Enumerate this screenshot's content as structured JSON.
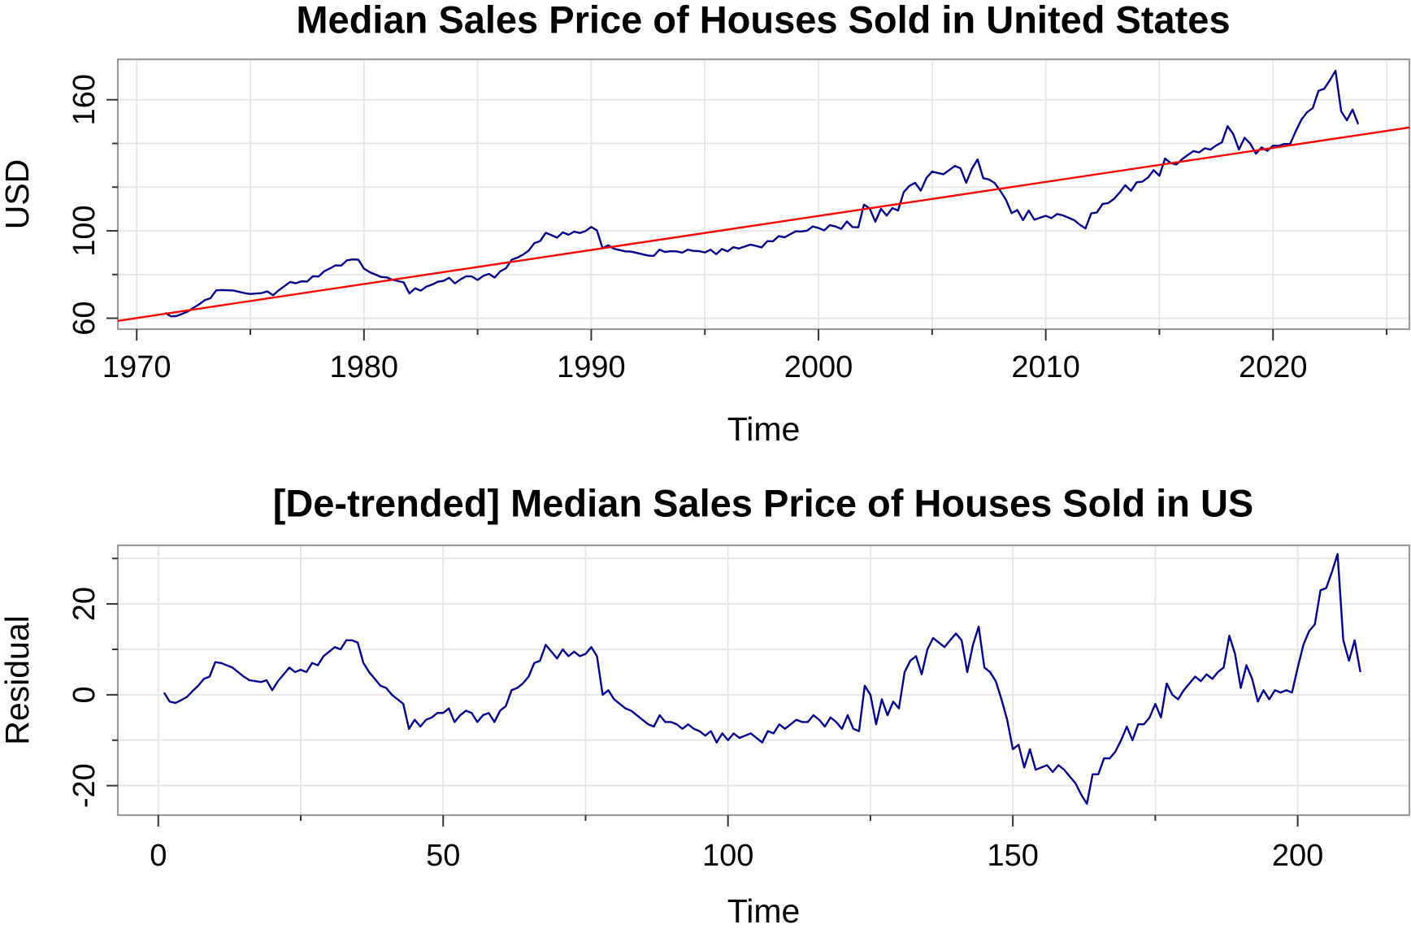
{
  "chart_data": [
    {
      "type": "line",
      "title": "Median Sales Price of Houses Sold in United States",
      "xlabel": "Time",
      "ylabel": "USD",
      "xlim": [
        1969.17,
        2026.0
      ],
      "ylim": [
        55,
        178.5
      ],
      "xticks": [
        1970,
        1980,
        1990,
        2000,
        2010,
        2020
      ],
      "xminorticks": [
        1975,
        1985,
        1995,
        2005,
        2015,
        2025
      ],
      "yticks": [
        60,
        100,
        160
      ],
      "yminorticks": [
        80,
        120,
        140
      ],
      "grid": true,
      "series": [
        {
          "color": "#00008b",
          "x": [
            1971.25,
            1971.5,
            1971.75,
            1972,
            1972.25,
            1972.5,
            1972.75,
            1973,
            1973.25,
            1973.5,
            1973.75,
            1974,
            1974.25,
            1974.5,
            1974.75,
            1975,
            1975.25,
            1975.5,
            1975.75,
            1976,
            1976.25,
            1976.5,
            1976.75,
            1977,
            1977.25,
            1977.5,
            1977.75,
            1978,
            1978.25,
            1978.5,
            1978.75,
            1979,
            1979.25,
            1979.5,
            1979.75,
            1980,
            1980.25,
            1980.5,
            1980.75,
            1981,
            1981.25,
            1981.5,
            1981.75,
            1982,
            1982.25,
            1982.5,
            1982.75,
            1983,
            1983.25,
            1983.5,
            1983.75,
            1984,
            1984.25,
            1984.5,
            1984.75,
            1985,
            1985.25,
            1985.5,
            1985.75,
            1986,
            1986.25,
            1986.5,
            1986.75,
            1987,
            1987.25,
            1987.5,
            1987.75,
            1988,
            1988.25,
            1988.5,
            1988.75,
            1989,
            1989.25,
            1989.5,
            1989.75,
            1990,
            1990.25,
            1990.5,
            1990.75,
            1991,
            1991.25,
            1991.5,
            1991.75,
            1992,
            1992.25,
            1992.5,
            1992.75,
            1993,
            1993.25,
            1993.5,
            1993.75,
            1994,
            1994.25,
            1994.5,
            1994.75,
            1995,
            1995.25,
            1995.5,
            1995.75,
            1996,
            1996.25,
            1996.5,
            1996.75,
            1997,
            1997.25,
            1997.5,
            1997.75,
            1998,
            1998.25,
            1998.5,
            1998.75,
            1999,
            1999.25,
            1999.5,
            1999.75,
            2000,
            2000.25,
            2000.5,
            2000.75,
            2001,
            2001.25,
            2001.5,
            2001.75,
            2002,
            2002.25,
            2002.5,
            2002.75,
            2003,
            2003.25,
            2003.5,
            2003.75,
            2004,
            2004.25,
            2004.5,
            2004.75,
            2005,
            2005.25,
            2005.5,
            2005.75,
            2006,
            2006.25,
            2006.5,
            2006.75,
            2007,
            2007.25,
            2007.5,
            2007.75,
            2008,
            2008.25,
            2008.5,
            2008.75,
            2009,
            2009.25,
            2009.5,
            2009.75,
            2010,
            2010.25,
            2010.5,
            2010.75,
            2011,
            2011.25,
            2011.5,
            2011.75,
            2012,
            2012.25,
            2012.5,
            2012.75,
            2013,
            2013.25,
            2013.5,
            2013.75,
            2014,
            2014.25,
            2014.5,
            2014.75,
            2015,
            2015.25,
            2015.5,
            2015.75,
            2016,
            2016.25,
            2016.5,
            2016.75,
            2017,
            2017.25,
            2017.5,
            2017.75,
            2018,
            2018.25,
            2018.5,
            2018.75,
            2019,
            2019.25,
            2019.5,
            2019.75,
            2020,
            2020.25,
            2020.5,
            2020.75,
            2021,
            2021.25,
            2021.5,
            2021.75,
            2022,
            2022.25,
            2022.5,
            2022.75,
            2023,
            2023.25,
            2023.5,
            2023.75
          ],
          "values": [
            62.5,
            60.9,
            61.0,
            62.0,
            63.1,
            64.8,
            66.4,
            68.3,
            69.2,
            72.8,
            72.9,
            72.8,
            72.7,
            72.1,
            71.5,
            71.1,
            71.3,
            71.5,
            72.3,
            70.5,
            72.8,
            74.7,
            76.6,
            76.0,
            76.9,
            76.8,
            79.2,
            79.1,
            81.5,
            82.8,
            84.2,
            84.1,
            86.5,
            86.9,
            86.8,
            82.7,
            81.1,
            80.0,
            78.9,
            78.7,
            77.6,
            77.0,
            76.4,
            71.3,
            73.7,
            72.6,
            74.5,
            75.4,
            76.7,
            77.1,
            78.5,
            75.9,
            77.8,
            79.2,
            79.1,
            77.5,
            79.4,
            80.3,
            78.6,
            81.5,
            82.9,
            86.8,
            87.7,
            89.1,
            91.0,
            94.4,
            95.3,
            99.1,
            98.0,
            96.9,
            99.3,
            98.2,
            99.6,
            99.0,
            99.9,
            101.8,
            100.2,
            92.0,
            93.4,
            91.8,
            91.2,
            90.6,
            90.5,
            89.9,
            89.3,
            88.7,
            88.5,
            91.4,
            90.3,
            90.7,
            90.6,
            90.0,
            91.4,
            90.8,
            90.7,
            90.1,
            91.4,
            89.3,
            91.7,
            90.6,
            92.5,
            91.9,
            92.8,
            93.7,
            93.1,
            92.4,
            95.3,
            95.2,
            97.6,
            97.0,
            98.4,
            99.8,
            99.7,
            100.1,
            102.0,
            101.3,
            100.2,
            102.6,
            102.0,
            100.9,
            104.3,
            101.7,
            101.6,
            112.0,
            110.3,
            104.2,
            110.1,
            107.0,
            110.4,
            109.3,
            117.7,
            120.6,
            122.0,
            118.4,
            124.2,
            127.1,
            126.5,
            125.9,
            127.8,
            129.7,
            128.6,
            122.0,
            128.4,
            132.7,
            124.1,
            123.5,
            121.9,
            118.3,
            114.2,
            108.1,
            109.5,
            104.9,
            109.3,
            105.1,
            106.0,
            106.9,
            105.8,
            107.7,
            107.1,
            106.0,
            104.9,
            102.8,
            101.1,
            108.0,
            108.4,
            112.3,
            112.7,
            114.6,
            117.5,
            120.9,
            118.3,
            122.2,
            122.5,
            124.4,
            127.8,
            125.2,
            133.1,
            131.0,
            130.4,
            132.8,
            134.7,
            136.5,
            135.9,
            137.8,
            137.2,
            139.1,
            140.5,
            147.9,
            144.3,
            137.2,
            142.6,
            139.9,
            135.3,
            138.2,
            136.6,
            139.0,
            138.9,
            139.8,
            139.7,
            145.6,
            150.9,
            154.3,
            156.2,
            164.1,
            165.0,
            168.9,
            173.3,
            154.7,
            150.6,
            155.5,
            148.8
          ]
        },
        {
          "color": "#ff0000",
          "x": [
            1969.17,
            2026.0
          ],
          "values": [
            58.8,
            147.3
          ]
        }
      ]
    },
    {
      "type": "line",
      "title": "[De-trended] Median Sales Price of Houses Sold in US",
      "xlabel": "Time",
      "ylabel": "Residual",
      "xlim": [
        -7.1,
        219.6
      ],
      "ylim": [
        -26.5,
        32.9
      ],
      "xticks": [
        0,
        50,
        100,
        150,
        200
      ],
      "xminorticks": [
        25,
        75,
        125,
        175
      ],
      "yticks": [
        -20,
        0,
        20
      ],
      "yminorticks": [
        -10,
        10,
        30
      ],
      "grid": true,
      "series": [
        {
          "color": "#00008b",
          "x": [
            1,
            2,
            3,
            4,
            5,
            6,
            7,
            8,
            9,
            10,
            11,
            12,
            13,
            14,
            15,
            16,
            17,
            18,
            19,
            20,
            21,
            22,
            23,
            24,
            25,
            26,
            27,
            28,
            29,
            30,
            31,
            32,
            33,
            34,
            35,
            36,
            37,
            38,
            39,
            40,
            41,
            42,
            43,
            44,
            45,
            46,
            47,
            48,
            49,
            50,
            51,
            52,
            53,
            54,
            55,
            56,
            57,
            58,
            59,
            60,
            61,
            62,
            63,
            64,
            65,
            66,
            67,
            68,
            69,
            70,
            71,
            72,
            73,
            74,
            75,
            76,
            77,
            78,
            79,
            80,
            81,
            82,
            83,
            84,
            85,
            86,
            87,
            88,
            89,
            90,
            91,
            92,
            93,
            94,
            95,
            96,
            97,
            98,
            99,
            100,
            101,
            102,
            103,
            104,
            105,
            106,
            107,
            108,
            109,
            110,
            111,
            112,
            113,
            114,
            115,
            116,
            117,
            118,
            119,
            120,
            121,
            122,
            123,
            124,
            125,
            126,
            127,
            128,
            129,
            130,
            131,
            132,
            133,
            134,
            135,
            136,
            137,
            138,
            139,
            140,
            141,
            142,
            143,
            144,
            145,
            146,
            147,
            148,
            149,
            150,
            151,
            152,
            153,
            154,
            155,
            156,
            157,
            158,
            159,
            160,
            161,
            162,
            163,
            164,
            165,
            166,
            167,
            168,
            169,
            170,
            171,
            172,
            173,
            174,
            175,
            176,
            177,
            178,
            179,
            180,
            181,
            182,
            183,
            184,
            185,
            186,
            187,
            188,
            189,
            190,
            191,
            192,
            193,
            194,
            195,
            196,
            197,
            198,
            199,
            200,
            201,
            202,
            203,
            204,
            205,
            206,
            207,
            208,
            209,
            210,
            211
          ],
          "values": [
            0.5,
            -1.5,
            -1.8,
            -1.2,
            -0.5,
            0.8,
            2,
            3.5,
            4,
            7.2,
            7,
            6.5,
            6,
            5,
            4,
            3.2,
            3,
            2.8,
            3.2,
            1,
            3,
            4.5,
            6,
            5,
            5.5,
            5,
            7,
            6.5,
            8.5,
            9.5,
            10.5,
            10,
            12,
            12,
            11.5,
            7,
            5,
            3.5,
            2,
            1.5,
            0,
            -1,
            -2,
            -7.5,
            -5.5,
            -7,
            -5.5,
            -5,
            -4,
            -4,
            -3,
            -6,
            -4.5,
            -3.5,
            -4,
            -6,
            -4.5,
            -4,
            -6,
            -3.5,
            -2.5,
            1,
            1.5,
            2.5,
            4,
            7,
            7.5,
            11,
            9.5,
            8,
            10,
            8.5,
            9.5,
            8.5,
            9,
            10.5,
            8.5,
            0,
            1,
            -1,
            -2,
            -3,
            -3.5,
            -4.5,
            -5.5,
            -6.5,
            -7,
            -4.5,
            -6,
            -6,
            -6.5,
            -7.5,
            -6.5,
            -7.5,
            -8,
            -9,
            -8,
            -10.5,
            -8.5,
            -10,
            -8.5,
            -9.5,
            -9,
            -8.5,
            -9.5,
            -10.5,
            -8,
            -8.5,
            -6.5,
            -7.5,
            -6.5,
            -5.5,
            -6,
            -6,
            -4.5,
            -5.5,
            -7,
            -5,
            -6,
            -7.5,
            -4.5,
            -7.5,
            -8,
            2,
            0,
            -6.5,
            -1,
            -4.5,
            -1.5,
            -3,
            5,
            7.5,
            8.5,
            4.5,
            10,
            12.5,
            11.5,
            10.5,
            12,
            13.5,
            12,
            5,
            11,
            15,
            6,
            5,
            3,
            -1,
            -5.5,
            -12,
            -11,
            -16,
            -12,
            -16.5,
            -16,
            -15.5,
            -17,
            -15.5,
            -16.5,
            -18,
            -19.5,
            -22,
            -24,
            -17.5,
            -17.5,
            -14,
            -14,
            -12.5,
            -10,
            -7,
            -10,
            -6.5,
            -6.5,
            -5,
            -2,
            -5,
            2.5,
            0,
            -1,
            1,
            2.5,
            4,
            3,
            4.5,
            3.5,
            5,
            6,
            13,
            9,
            1.5,
            6.5,
            3.5,
            -1.5,
            1,
            -1,
            1,
            0.5,
            1,
            0.5,
            6,
            11,
            14,
            15.5,
            23,
            23.5,
            27,
            31,
            12,
            7.5,
            12,
            5
          ]
        }
      ]
    }
  ]
}
